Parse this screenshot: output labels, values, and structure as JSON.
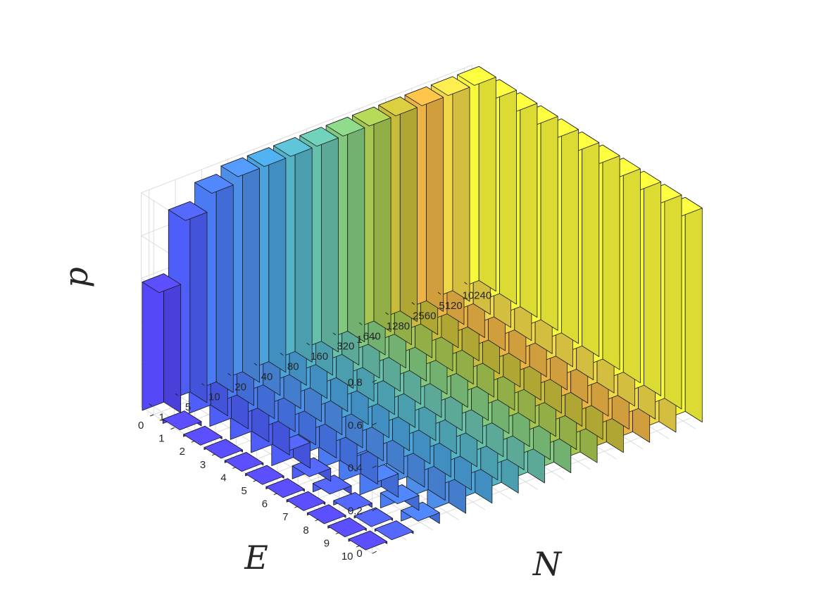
{
  "chart_data": {
    "type": "bar3d",
    "title": "",
    "xlabel": "N",
    "ylabel": "E",
    "zlabel": "p",
    "zlim": [
      0,
      1
    ],
    "z_ticks": [
      "0",
      "0.2",
      "0.4",
      "0.6",
      "0.8",
      "1"
    ],
    "N_categories": [
      "1",
      "5",
      "10",
      "20",
      "40",
      "80",
      "160",
      "320",
      "640",
      "1280",
      "2560",
      "5120",
      "10240"
    ],
    "E_categories": [
      "0",
      "1",
      "2",
      "3",
      "4",
      "5",
      "6",
      "7",
      "8",
      "9",
      "10"
    ],
    "values_by_N": [
      {
        "N": "1",
        "p": [
          0.6,
          0.02,
          0.01,
          0.01,
          0.01,
          0.01,
          0.01,
          0.01,
          0.01,
          0.01,
          0.01
        ]
      },
      {
        "N": "5",
        "p": [
          0.89,
          0.71,
          0.48,
          0.34,
          0.23,
          0.12,
          0.06,
          0.04,
          0.02,
          0.01,
          0.01
        ]
      },
      {
        "N": "10",
        "p": [
          0.97,
          0.87,
          0.74,
          0.59,
          0.46,
          0.35,
          0.25,
          0.17,
          0.11,
          0.07,
          0.05
        ]
      },
      {
        "N": "20",
        "p": [
          1.0,
          0.95,
          0.89,
          0.8,
          0.7,
          0.59,
          0.49,
          0.4,
          0.31,
          0.24,
          0.18
        ]
      },
      {
        "N": "40",
        "p": [
          1.0,
          0.98,
          0.96,
          0.92,
          0.87,
          0.81,
          0.74,
          0.67,
          0.59,
          0.52,
          0.45
        ]
      },
      {
        "N": "80",
        "p": [
          1.0,
          1.0,
          0.99,
          0.98,
          0.96,
          0.93,
          0.9,
          0.86,
          0.82,
          0.77,
          0.72
        ]
      },
      {
        "N": "160",
        "p": [
          1.0,
          1.0,
          1.0,
          1.0,
          0.99,
          0.98,
          0.97,
          0.96,
          0.94,
          0.92,
          0.9
        ]
      },
      {
        "N": "320",
        "p": [
          1.0,
          1.0,
          1.0,
          1.0,
          1.0,
          1.0,
          1.0,
          1.0,
          0.99,
          0.99,
          0.98
        ]
      },
      {
        "N": "640",
        "p": [
          1.0,
          1.0,
          1.0,
          1.0,
          1.0,
          1.0,
          1.0,
          1.0,
          1.0,
          1.0,
          1.0
        ]
      },
      {
        "N": "1280",
        "p": [
          1.0,
          1.0,
          1.0,
          1.0,
          1.0,
          1.0,
          1.0,
          1.0,
          1.0,
          1.0,
          1.0
        ]
      },
      {
        "N": "2560",
        "p": [
          1.0,
          1.0,
          1.0,
          1.0,
          1.0,
          1.0,
          1.0,
          1.0,
          1.0,
          1.0,
          1.0
        ]
      },
      {
        "N": "5120",
        "p": [
          1.0,
          1.0,
          1.0,
          1.0,
          1.0,
          1.0,
          1.0,
          1.0,
          1.0,
          1.0,
          1.0
        ]
      },
      {
        "N": "10240",
        "p": [
          1.0,
          1.0,
          1.0,
          1.0,
          1.0,
          1.0,
          1.0,
          1.0,
          1.0,
          1.0,
          1.0
        ]
      }
    ],
    "colors_by_N": [
      "#5448f7",
      "#4d5ff8",
      "#4a7bf2",
      "#4c8ee8",
      "#4aa3db",
      "#55b3c6",
      "#67c0ab",
      "#82c97f",
      "#a6c650",
      "#c8bd3a",
      "#ecb444",
      "#f0d848",
      "#f9f93b"
    ],
    "grid": true,
    "colormap": "parula"
  }
}
